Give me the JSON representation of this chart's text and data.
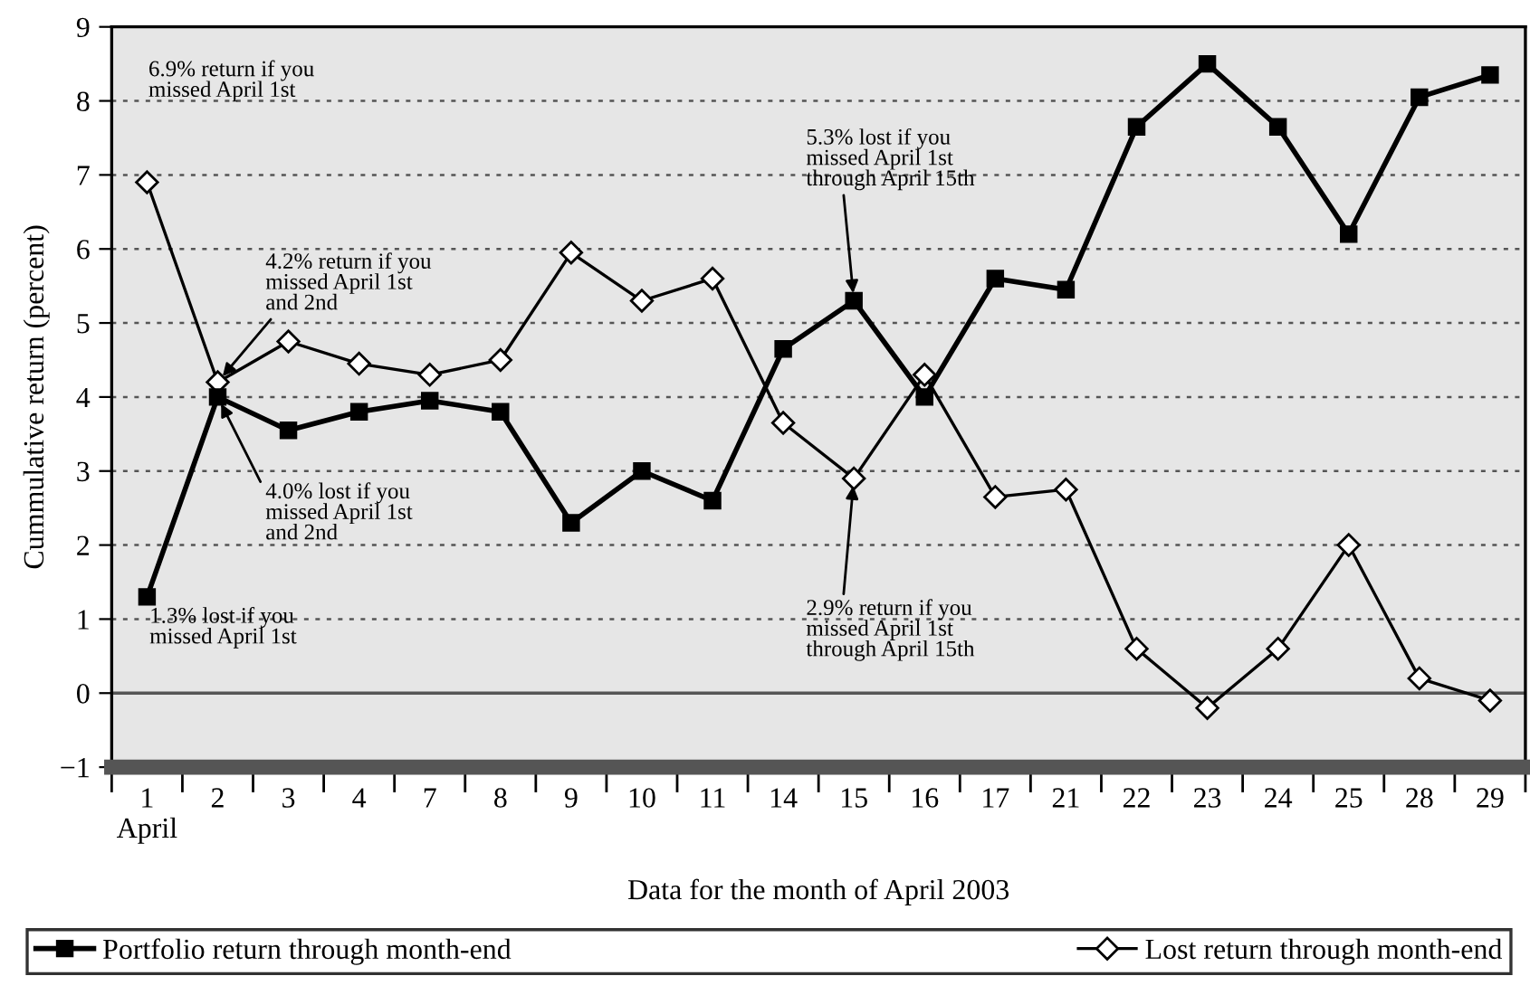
{
  "chart_data": {
    "type": "line",
    "xlabel": "Data for the month of April 2003",
    "ylabel": "Cummulative return (percent)",
    "categories": [
      "1\nApril",
      "2",
      "3",
      "4",
      "7",
      "8",
      "9",
      "10",
      "11",
      "14",
      "15",
      "16",
      "17",
      "21",
      "22",
      "23",
      "24",
      "25",
      "28",
      "29"
    ],
    "series": [
      {
        "name": "Portfolio return through month-end",
        "color": "#000000",
        "marker": "square",
        "values": [
          1.3,
          4.0,
          3.55,
          3.8,
          3.95,
          3.8,
          2.3,
          3.0,
          2.6,
          4.65,
          5.3,
          4.0,
          5.6,
          5.45,
          7.65,
          8.5,
          7.65,
          6.2,
          8.05,
          8.35
        ]
      },
      {
        "name": "Lost return through month-end",
        "color": "#000000",
        "marker": "diamond",
        "values": [
          6.9,
          4.2,
          4.75,
          4.45,
          4.3,
          4.5,
          5.95,
          5.3,
          5.6,
          3.65,
          2.9,
          4.3,
          2.65,
          2.75,
          0.6,
          -0.2,
          0.6,
          2.0,
          0.2,
          -0.1
        ]
      }
    ],
    "ylim": [
      -1,
      9
    ],
    "yticks": [
      {
        "value": -1,
        "label": "−1"
      },
      0,
      1,
      2,
      3,
      4,
      5,
      6,
      7,
      8,
      9
    ],
    "grid": "y",
    "ref_lines": [
      {
        "axis": "y",
        "value": 0,
        "label": null,
        "color": "#555555",
        "line_style": "solid"
      }
    ],
    "legend": "bottom",
    "annotations": [
      "6.9% return if you\nmissed April 1st",
      {
        "text": "4.2% return if you\nmissed April 1st\nand 2nd",
        "x": "2",
        "y": 4.2
      },
      {
        "text": "4.0% lost if you\nmissed April 1st\nand 2nd",
        "x": "2",
        "y": 4.0
      },
      {
        "text": "1.3% lost if you\nmissed April 1st",
        "x": "1\nApril",
        "y": 1.3
      },
      {
        "text": "5.3% lost if you\nmissed April 1st\nthrough April 15th",
        "x": "15",
        "y": 5.3
      },
      {
        "text": "2.9% return if you\nmissed April 1st\nthrough April 15th",
        "x": "15",
        "y": 2.9
      }
    ]
  }
}
